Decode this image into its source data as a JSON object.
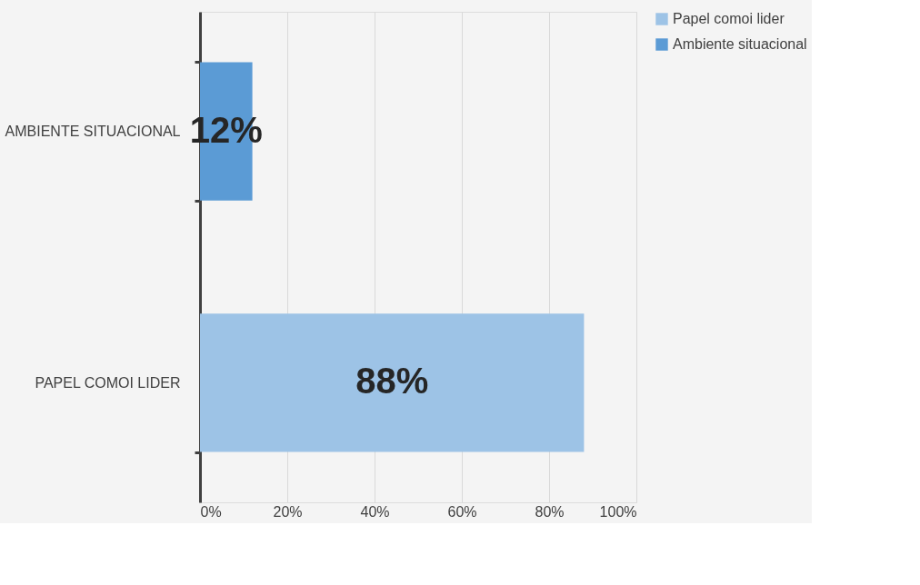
{
  "chart_data": {
    "type": "bar",
    "orientation": "horizontal",
    "categories": [
      "AMBIENTE SITUACIONAL",
      "PAPEL COMOI LIDER"
    ],
    "series": [
      {
        "name": "Papel comoi lider",
        "color": "#9dc3e6",
        "values": [
          null,
          88
        ],
        "value_labels": [
          null,
          "88%"
        ]
      },
      {
        "name": "Ambiente situacional",
        "color": "#5b9bd5",
        "values": [
          12,
          null
        ],
        "value_labels": [
          "12%",
          null
        ]
      }
    ],
    "xlim": [
      0,
      100
    ],
    "xticks": [
      {
        "value": 0,
        "label": "0%"
      },
      {
        "value": 20,
        "label": "20%"
      },
      {
        "value": 40,
        "label": "40%"
      },
      {
        "value": 60,
        "label": "60%"
      },
      {
        "value": 80,
        "label": "80%"
      },
      {
        "value": 100,
        "label": "100%"
      }
    ],
    "grid": "x",
    "legend": "right"
  }
}
